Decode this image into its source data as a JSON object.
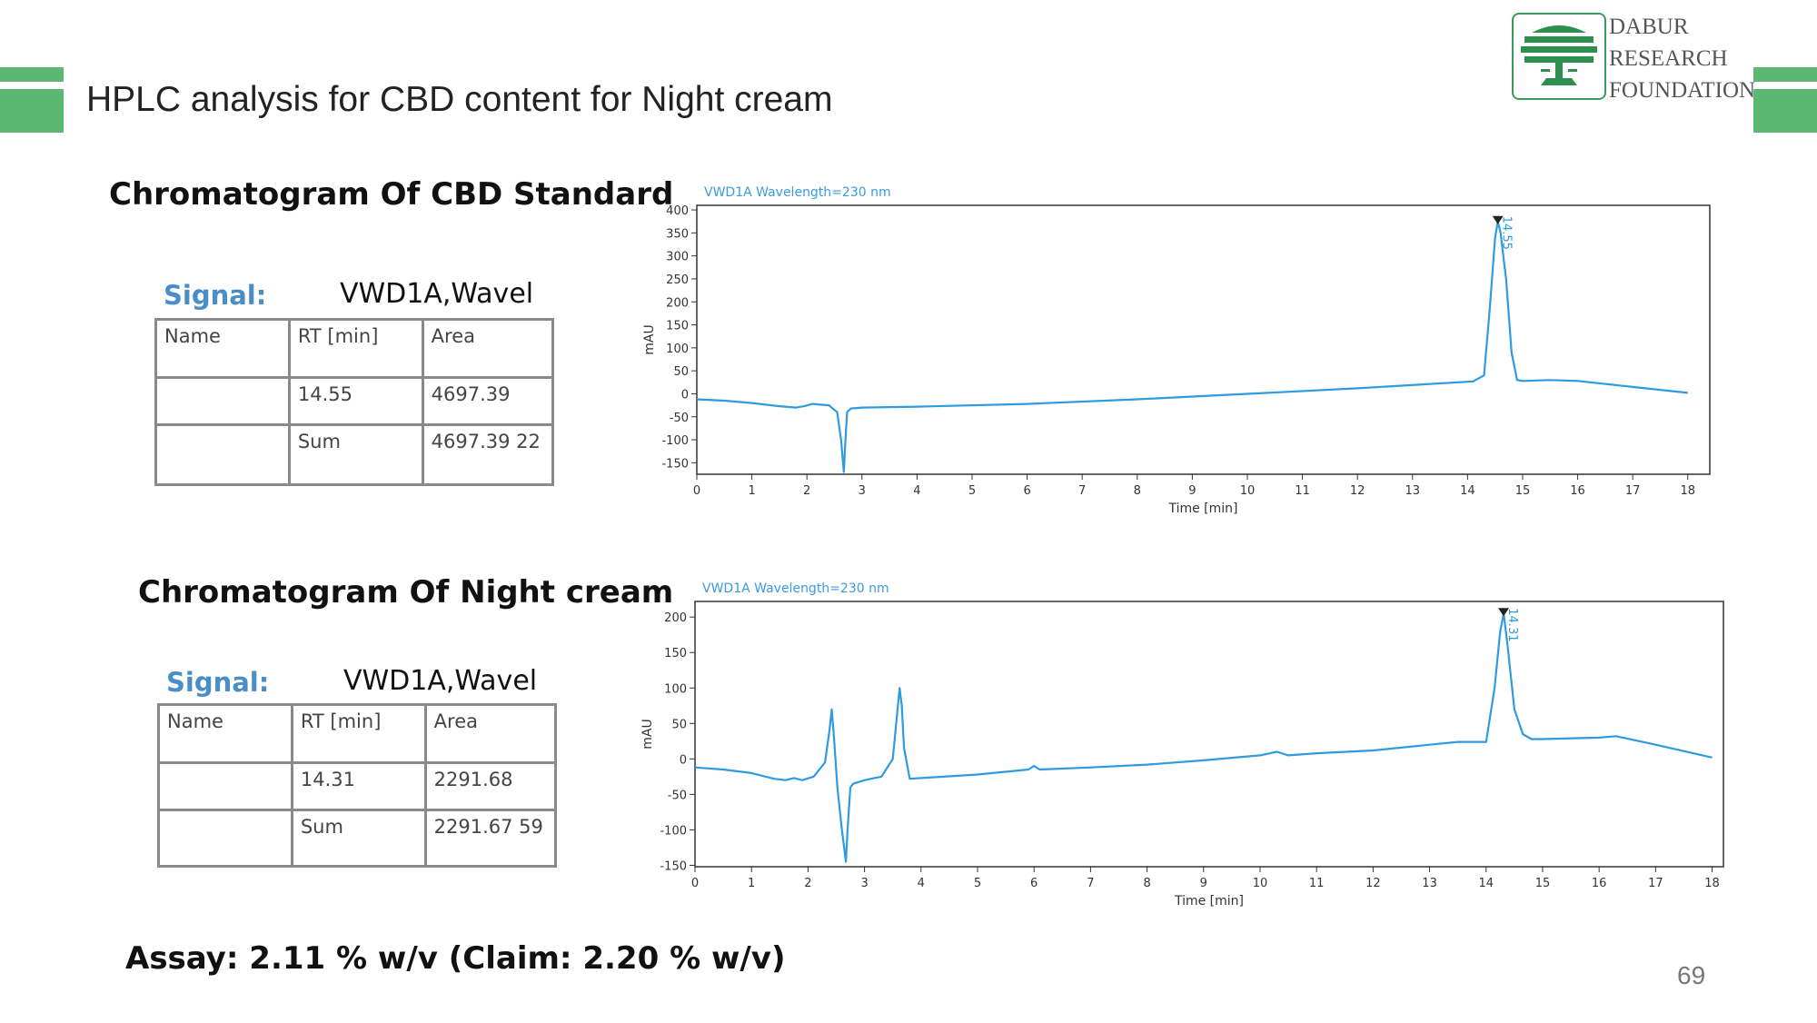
{
  "header": {
    "title": "HPLC analysis for CBD content for Night cream",
    "logo_lines": [
      "DABUR",
      "RESEARCH",
      "FOUNDATION"
    ],
    "bar_color": "#5cb870"
  },
  "standard": {
    "section_title": "Chromatogram Of CBD Standard",
    "signal_label": "Signal:",
    "signal_value": "VWD1A,Wavel",
    "table": {
      "headers": [
        "Name",
        "RT [min]",
        "Area"
      ],
      "rows": [
        [
          "",
          "14.55",
          "4697.39"
        ],
        [
          "",
          "Sum",
          "4697.39 22"
        ]
      ]
    }
  },
  "sample": {
    "section_title": "Chromatogram Of Night cream",
    "signal_label": "Signal:",
    "signal_value": "VWD1A,Wavel",
    "table": {
      "headers": [
        "Name",
        "RT [min]",
        "Area"
      ],
      "rows": [
        [
          "",
          "14.31",
          "2291.68"
        ],
        [
          "",
          "Sum",
          "2291.67 59"
        ]
      ]
    }
  },
  "footer": {
    "assay": "Assay: 2.11 % w/v  (Claim: 2.20 % w/v)",
    "page_number": "69"
  },
  "chart_data": [
    {
      "type": "line",
      "title": "VWD1A Wavelength=230 nm",
      "xlabel": "Time [min]",
      "ylabel": "mAU",
      "xlim": [
        0,
        18.4
      ],
      "ylim": [
        -175,
        410
      ],
      "xticks": [
        0,
        1,
        2,
        3,
        4,
        5,
        6,
        7,
        8,
        9,
        10,
        11,
        12,
        13,
        14,
        15,
        16,
        17,
        18
      ],
      "yticks": [
        -150,
        -100,
        -50,
        0,
        50,
        100,
        150,
        200,
        250,
        300,
        350,
        400
      ],
      "grid": false,
      "color": "#2e9be0",
      "peak_label": "14.55",
      "peak_marker": [
        14.55,
        375
      ],
      "series": [
        {
          "x": [
            0,
            0.5,
            1,
            1.5,
            1.8,
            1.95,
            2.1,
            2.4,
            2.55,
            2.62,
            2.67,
            2.7,
            2.73,
            2.8,
            3,
            4,
            6,
            8,
            10,
            12,
            14.1,
            14.3,
            14.4,
            14.5,
            14.55,
            14.6,
            14.7,
            14.8,
            14.9,
            15,
            15.5,
            16,
            17,
            18
          ],
          "y": [
            -12,
            -15,
            -20,
            -27,
            -30,
            -27,
            -22,
            -25,
            -40,
            -100,
            -170,
            -100,
            -40,
            -32,
            -30,
            -28,
            -22,
            -12,
            0,
            12,
            27,
            40,
            180,
            340,
            375,
            350,
            250,
            90,
            30,
            28,
            30,
            28,
            15,
            2
          ]
        }
      ]
    },
    {
      "type": "line",
      "title": "VWD1A Wavelength=230 nm",
      "xlabel": "Time [min]",
      "ylabel": "mAU",
      "xlim": [
        0,
        18.2
      ],
      "ylim": [
        -152,
        222
      ],
      "xticks": [
        0,
        1,
        2,
        3,
        4,
        5,
        6,
        7,
        8,
        9,
        10,
        11,
        12,
        13,
        14,
        15,
        16,
        17,
        18
      ],
      "yticks": [
        -150,
        -100,
        -50,
        0,
        50,
        100,
        150,
        200
      ],
      "grid": false,
      "color": "#2e9be0",
      "peak_label": "14.31",
      "peak_marker": [
        14.31,
        205
      ],
      "series": [
        {
          "x": [
            0,
            0.5,
            1,
            1.4,
            1.6,
            1.75,
            1.9,
            2.1,
            2.3,
            2.38,
            2.42,
            2.46,
            2.52,
            2.6,
            2.67,
            2.7,
            2.75,
            2.8,
            3,
            3.3,
            3.5,
            3.62,
            3.66,
            3.7,
            3.8,
            4,
            5,
            5.9,
            6,
            6.1,
            7,
            8,
            9,
            10,
            10.3,
            10.5,
            11,
            12,
            13,
            13.5,
            14,
            14.15,
            14.25,
            14.31,
            14.38,
            14.5,
            14.65,
            14.8,
            15,
            16,
            16.3,
            17,
            18
          ],
          "y": [
            -12,
            -15,
            -20,
            -28,
            -30,
            -27,
            -30,
            -25,
            -5,
            40,
            70,
            30,
            -40,
            -100,
            -145,
            -100,
            -40,
            -35,
            -30,
            -25,
            0,
            100,
            75,
            15,
            -28,
            -27,
            -22,
            -15,
            -10,
            -15,
            -12,
            -8,
            -2,
            5,
            10,
            5,
            8,
            12,
            20,
            24,
            24,
            100,
            180,
            205,
            160,
            70,
            35,
            28,
            28,
            30,
            32,
            20,
            2
          ]
        }
      ]
    }
  ]
}
